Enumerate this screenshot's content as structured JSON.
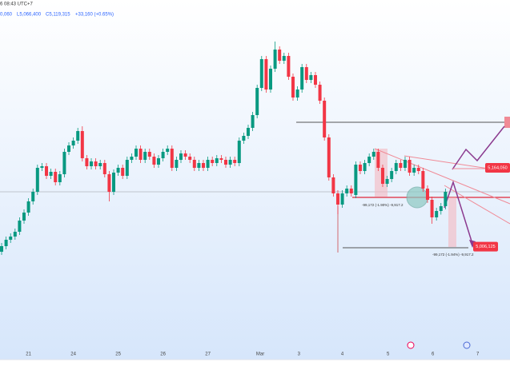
{
  "header": {
    "time": "6 08:43 UTC+7",
    "quote": [
      "0,060",
      "L5,066,400",
      "C5,119,315",
      "+33,160 (+0.65%)"
    ]
  },
  "chart_data": {
    "type": "candlestick",
    "up_color": "#089981",
    "down_color": "#f23645",
    "ylim": [
      4780000,
      5500000
    ],
    "xlim": [
      -0.36,
      113.4
    ],
    "xticks": [
      {
        "value": 6,
        "label": "21"
      },
      {
        "value": 16,
        "label": "24"
      },
      {
        "value": 26,
        "label": "25"
      },
      {
        "value": 36,
        "label": "26"
      },
      {
        "value": 46,
        "label": "27"
      },
      {
        "value": 57.7,
        "label": "Mar"
      },
      {
        "value": 66.3,
        "label": "3"
      },
      {
        "value": 76,
        "label": "4"
      },
      {
        "value": 86.2,
        "label": "5"
      },
      {
        "value": 96.2,
        "label": "6"
      },
      {
        "value": 106.2,
        "label": "7"
      }
    ],
    "open": [
      4996000,
      5007200,
      5020000,
      5026400,
      5036000,
      5058400,
      5074400,
      5096800,
      5116000,
      5164000,
      5167200,
      5148000,
      5156000,
      5135200,
      5151200,
      5196000,
      5208800,
      5218400,
      5237600,
      5183200,
      5167200,
      5176800,
      5167200,
      5173600,
      5151200,
      5116000,
      5154400,
      5164000,
      5148000,
      5180000,
      5186400,
      5202400,
      5180000,
      5196000,
      5186400,
      5170400,
      5183200,
      5196000,
      5202400,
      5164000,
      5180000,
      5192800,
      5186400,
      5180000,
      5164000,
      5173600,
      5164000,
      5180000,
      5173600,
      5183200,
      5180000,
      5170400,
      5180000,
      5173600,
      5218400,
      5228000,
      5244000,
      5269600,
      5324000,
      5381600,
      5320800,
      5362400,
      5400800,
      5378400,
      5388000,
      5346400,
      5304800,
      5320800,
      5365600,
      5340000,
      5349600,
      5330400,
      5298400,
      5224800,
      5144800,
      5112800,
      5090400,
      5112800,
      5122400,
      5109600,
      5170400,
      5157600,
      5173600,
      5186400,
      5196000,
      5164000,
      5132000,
      5141600,
      5157600,
      5173600,
      5164000,
      5180000,
      5154400,
      5164000,
      5157600,
      5122400,
      5100000,
      5064800,
      5077600,
      5087200
    ],
    "high": [
      5013600,
      5026400,
      5032800,
      5042400,
      5064800,
      5080800,
      5103200,
      5122400,
      5170400,
      5173600,
      5173600,
      5162400,
      5162400,
      5157600,
      5202400,
      5215200,
      5224800,
      5244000,
      5247200,
      5189600,
      5183200,
      5183200,
      5180000,
      5180000,
      5157600,
      5160800,
      5170400,
      5170400,
      5186400,
      5192800,
      5208800,
      5208800,
      5202400,
      5202400,
      5192800,
      5189600,
      5202400,
      5208800,
      5208800,
      5186400,
      5199200,
      5199200,
      5192800,
      5186400,
      5180000,
      5180000,
      5186400,
      5186400,
      5189600,
      5189600,
      5186400,
      5186400,
      5186400,
      5224800,
      5234400,
      5250400,
      5276000,
      5330400,
      5388000,
      5388000,
      5368800,
      5416800,
      5407200,
      5394400,
      5394400,
      5352800,
      5327200,
      5372000,
      5372000,
      5356000,
      5356000,
      5336800,
      5304800,
      5231200,
      5151200,
      5119200,
      5119200,
      5128800,
      5128800,
      5176800,
      5176800,
      5180000,
      5192800,
      5202400,
      5202400,
      5170400,
      5148000,
      5164000,
      5180000,
      5180000,
      5186400,
      5186400,
      5170400,
      5170400,
      5164000,
      5128800,
      5106400,
      5084000,
      5093600,
      5122400
    ],
    "low": [
      4989600,
      5000800,
      5013600,
      5020000,
      5029600,
      5052000,
      5068000,
      5090400,
      5109600,
      5157600,
      5141600,
      5141600,
      5128800,
      5128800,
      5144800,
      5189600,
      5202400,
      5212000,
      5176800,
      5160800,
      5160800,
      5160800,
      5160800,
      5144800,
      5096800,
      5109600,
      5148000,
      5141600,
      5141600,
      5173600,
      5180000,
      5173600,
      5173600,
      5180000,
      5164000,
      5164000,
      5176800,
      5189600,
      5157600,
      5157600,
      5173600,
      5180000,
      5173600,
      5157600,
      5157600,
      5157600,
      5157600,
      5167200,
      5167200,
      5173600,
      5164000,
      5164000,
      5167200,
      5167200,
      5212000,
      5221600,
      5237600,
      5263200,
      5317600,
      5314400,
      5314400,
      5356000,
      5372000,
      5372000,
      5340000,
      5298400,
      5298400,
      5314400,
      5333600,
      5333600,
      5324000,
      5292000,
      5218400,
      5138400,
      5106400,
      5071200,
      5084000,
      5106400,
      5106400,
      5103200,
      5151200,
      5151200,
      5167200,
      5180000,
      5157600,
      5125600,
      5125600,
      5135200,
      5151200,
      5157600,
      5157600,
      5148000,
      5148000,
      5151200,
      5116000,
      5093600,
      5052000,
      5058400,
      5070400,
      5080800
    ],
    "close": [
      5007200,
      5020000,
      5026400,
      5036000,
      5058400,
      5074400,
      5096800,
      5116000,
      5164000,
      5167200,
      5148000,
      5156000,
      5135200,
      5151200,
      5196000,
      5208800,
      5218400,
      5237600,
      5183200,
      5167200,
      5176800,
      5167200,
      5173600,
      5151200,
      5116000,
      5154400,
      5164000,
      5148000,
      5180000,
      5186400,
      5202400,
      5180000,
      5196000,
      5186400,
      5170400,
      5183200,
      5196000,
      5202400,
      5164000,
      5180000,
      5192800,
      5186400,
      5180000,
      5164000,
      5173600,
      5164000,
      5180000,
      5173600,
      5183200,
      5180000,
      5170400,
      5180000,
      5173600,
      5218400,
      5228000,
      5244000,
      5269600,
      5324000,
      5381600,
      5320800,
      5362400,
      5400800,
      5378400,
      5388000,
      5346400,
      5304800,
      5320800,
      5365600,
      5340000,
      5349600,
      5330400,
      5298400,
      5224800,
      5144800,
      5112800,
      5090400,
      5112800,
      5122400,
      5112800,
      5170400,
      5157600,
      5173600,
      5186400,
      5196000,
      5164000,
      5132000,
      5141600,
      5157600,
      5173600,
      5164000,
      5180000,
      5154400,
      5164000,
      5157600,
      5122400,
      5100000,
      5064800,
      5077600,
      5087200,
      5116000
    ],
    "price_labels": [
      {
        "value": 5164050,
        "label": "5,164,050"
      },
      {
        "value": 5006125,
        "label": "5,006,125"
      }
    ],
    "annotations": [
      "-99,172 (-1.90%) -9,917.2",
      "-99,172 (-1.94%) -9,917.2"
    ]
  }
}
